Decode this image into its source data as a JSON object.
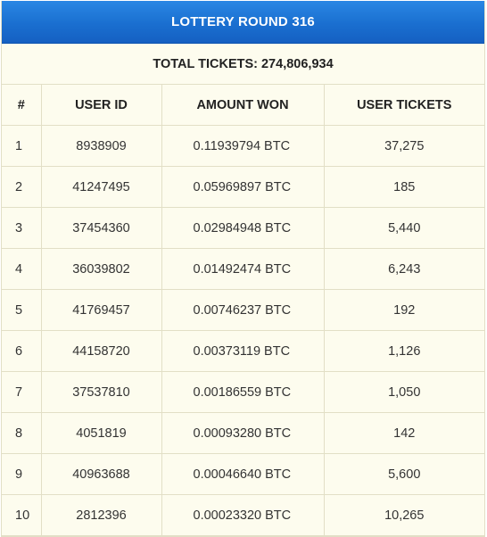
{
  "title": "LOTTERY ROUND 316",
  "total_label": "TOTAL TICKETS: 274,806,934",
  "columns": [
    "#",
    "USER ID",
    "AMOUNT WON",
    "USER TICKETS"
  ],
  "rows": [
    {
      "num": "1",
      "user_id": "8938909",
      "amount": "0.11939794 BTC",
      "tickets": "37,275"
    },
    {
      "num": "2",
      "user_id": "41247495",
      "amount": "0.05969897 BTC",
      "tickets": "185"
    },
    {
      "num": "3",
      "user_id": "37454360",
      "amount": "0.02984948 BTC",
      "tickets": "5,440"
    },
    {
      "num": "4",
      "user_id": "36039802",
      "amount": "0.01492474 BTC",
      "tickets": "6,243"
    },
    {
      "num": "5",
      "user_id": "41769457",
      "amount": "0.00746237 BTC",
      "tickets": "192"
    },
    {
      "num": "6",
      "user_id": "44158720",
      "amount": "0.00373119 BTC",
      "tickets": "1,126"
    },
    {
      "num": "7",
      "user_id": "37537810",
      "amount": "0.00186559 BTC",
      "tickets": "1,050"
    },
    {
      "num": "8",
      "user_id": "4051819",
      "amount": "0.00093280 BTC",
      "tickets": "142"
    },
    {
      "num": "9",
      "user_id": "40963688",
      "amount": "0.00046640 BTC",
      "tickets": "5,600"
    },
    {
      "num": "10",
      "user_id": "2812396",
      "amount": "0.00023320 BTC",
      "tickets": "10,265"
    }
  ],
  "colors": {
    "header_bg": "#1a6fd0",
    "table_bg": "#fdfcee",
    "border": "#e2dfc6"
  }
}
